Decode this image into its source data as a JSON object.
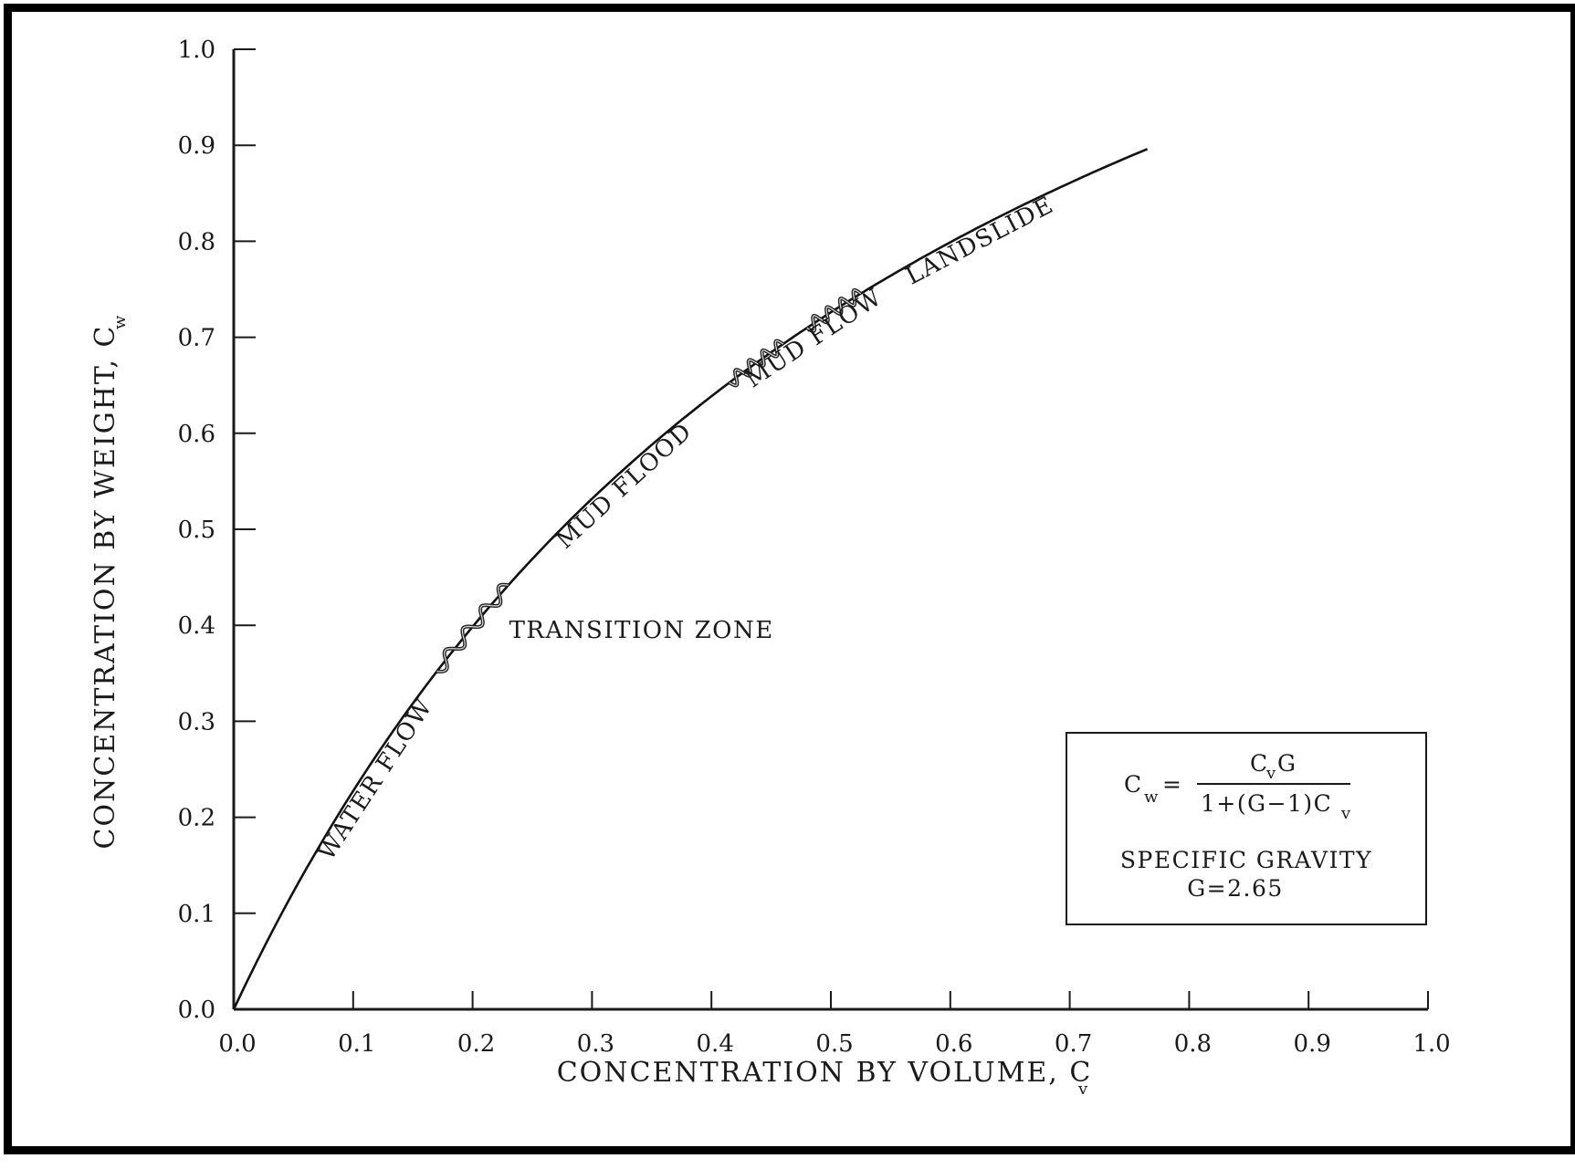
{
  "chart_data": {
    "type": "line",
    "xlabel": "CONCENTRATION BY VOLUME, C",
    "xlabel_sub": "v",
    "ylabel": "CONCENTRATION BY WEIGHT, C",
    "ylabel_sub": "w",
    "xlim": [
      0.0,
      1.0
    ],
    "ylim": [
      0.0,
      1.0
    ],
    "x_ticks": [
      "0.0",
      "0.1",
      "0.2",
      "0.3",
      "0.4",
      "0.5",
      "0.6",
      "0.7",
      "0.8",
      "0.9",
      "1.0"
    ],
    "y_ticks": [
      "0.0",
      "0.1",
      "0.2",
      "0.3",
      "0.4",
      "0.5",
      "0.6",
      "0.7",
      "0.8",
      "0.9",
      "1.0"
    ],
    "specific_gravity": 2.65,
    "curve_x_range": [
      0.0,
      0.765
    ],
    "regions": [
      {
        "label": "WATER FLOW",
        "at_x": 0.11
      },
      {
        "label": "TRANSITION ZONE",
        "at_x": 0.2
      },
      {
        "label": "MUD FLOOD",
        "at_x": 0.32
      },
      {
        "label": "MUD FLOW",
        "at_x": 0.48
      },
      {
        "label": "LANDSLIDE",
        "at_x": 0.62
      }
    ],
    "wavy_segments": [
      {
        "from_x": 0.17,
        "to_x": 0.23
      },
      {
        "from_x": 0.415,
        "to_x": 0.46
      },
      {
        "from_x": 0.48,
        "to_x": 0.525
      }
    ],
    "equation": {
      "lhs": "C",
      "lhs_sub": "w",
      "eq": "=",
      "numerator": "C",
      "numerator_sub": "v",
      "numerator_rest": " G",
      "denominator": "1+(G−1)C",
      "denominator_sub": "v"
    },
    "note_line1": "SPECIFIC  GRAVITY",
    "note_line2": "G=2.65"
  }
}
